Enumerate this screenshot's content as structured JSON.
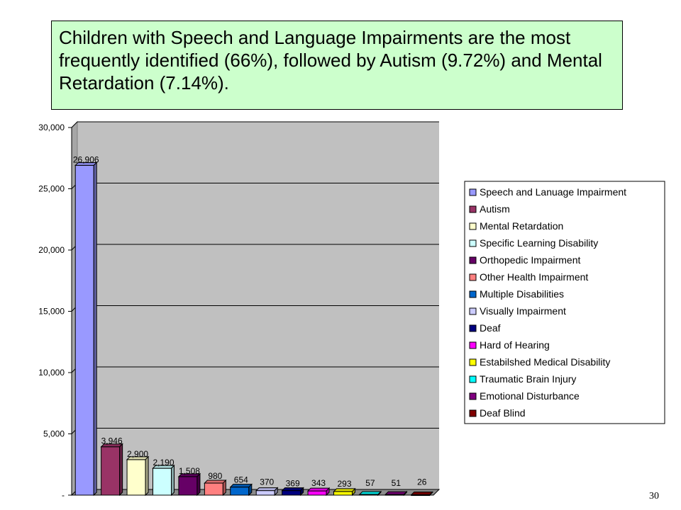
{
  "slide": {
    "headline": "Children with Speech and Language Impairments are the most frequently identified (66%), followed by Autism (9.72%) and Mental Retardation (7.14%).",
    "page_number": "30"
  },
  "chart_data": {
    "type": "bar",
    "title": "",
    "xlabel": "",
    "ylabel": "",
    "ylim": [
      0,
      30000
    ],
    "yticks": [
      0,
      5000,
      10000,
      15000,
      20000,
      25000,
      30000
    ],
    "ytick_labels": [
      "-",
      "5,000",
      "10,000",
      "15,000",
      "20,000",
      "25,000",
      "30,000"
    ],
    "grid": true,
    "legend_position": "right",
    "categories": [
      "Speech and Lanuage Impairment",
      "Autism",
      "Mental Retardation",
      "Specific Learning Disability",
      "Orthopedic Impairment",
      "Other Health Impairment",
      "Multiple Disabilities",
      "Visually Impairment",
      "Deaf",
      "Hard of Hearing",
      "Estabilshed Medical Disability",
      "Traumatic Brain Injury",
      "Emotional Disturbance",
      "Deaf Blind"
    ],
    "values": [
      26906,
      3946,
      2900,
      2190,
      1508,
      980,
      654,
      370,
      369,
      343,
      293,
      57,
      51,
      26
    ],
    "value_labels": [
      "26,906",
      "3,946",
      "2,900",
      "2,190",
      "1,508",
      "980",
      "654",
      "370",
      "369",
      "343",
      "293",
      "57",
      "51",
      "26"
    ],
    "colors": [
      "#9999ff",
      "#993366",
      "#ffffcc",
      "#ccffff",
      "#660066",
      "#ff8080",
      "#0066cc",
      "#ccccff",
      "#000080",
      "#ff00ff",
      "#ffff00",
      "#00ffff",
      "#800080",
      "#800000"
    ],
    "plot_background": "#c0c0c0"
  }
}
